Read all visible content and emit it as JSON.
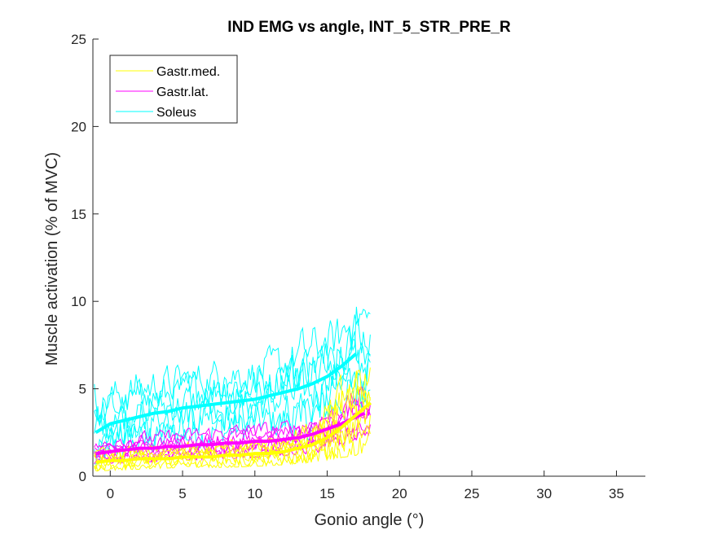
{
  "chart_data": {
    "type": "line",
    "title": "IND EMG vs angle, INT_5_STR_PRE_R",
    "xlabel": "Gonio angle (°)",
    "ylabel": "Muscle activation (% of MVC)",
    "xlim": [
      -1.2,
      37
    ],
    "ylim": [
      0,
      25
    ],
    "xticks": [
      0,
      5,
      10,
      15,
      20,
      25,
      30,
      35
    ],
    "yticks": [
      0,
      5,
      10,
      15,
      20,
      25
    ],
    "grid": false,
    "legend_position": "top-left",
    "series": [
      {
        "name": "Gastr.med.",
        "color": "#ffff00",
        "mean": {
          "x": [
            -1,
            0,
            1,
            2,
            3,
            4,
            5,
            6,
            7,
            8,
            9,
            10,
            11,
            12,
            13,
            14,
            15,
            16,
            17,
            18
          ],
          "y": [
            0.8,
            0.9,
            0.9,
            1.0,
            1.0,
            1.0,
            1.1,
            1.1,
            1.1,
            1.2,
            1.2,
            1.3,
            1.3,
            1.4,
            1.6,
            1.8,
            2.2,
            2.8,
            3.5,
            4.2
          ]
        },
        "trial_count": 6,
        "trial_band": [
          [
            -1,
            0.3,
            2.0
          ],
          [
            2,
            0.4,
            2.2
          ],
          [
            5,
            0.5,
            2.4
          ],
          [
            8,
            0.5,
            2.6
          ],
          [
            11,
            0.6,
            3.0
          ],
          [
            14,
            0.8,
            4.5
          ],
          [
            15.5,
            1.0,
            9.5
          ],
          [
            17,
            1.2,
            8.5
          ],
          [
            18,
            1.4,
            6.5
          ]
        ]
      },
      {
        "name": "Gastr.lat.",
        "color": "#ff00ff",
        "mean": {
          "x": [
            -1,
            0,
            1,
            2,
            3,
            4,
            5,
            6,
            7,
            8,
            9,
            10,
            11,
            12,
            13,
            14,
            15,
            16,
            17,
            17.6
          ],
          "y": [
            1.3,
            1.4,
            1.5,
            1.6,
            1.6,
            1.7,
            1.7,
            1.8,
            1.8,
            1.9,
            1.9,
            2.0,
            2.0,
            2.1,
            2.2,
            2.4,
            2.7,
            3.0,
            3.4,
            3.6
          ]
        },
        "trial_count": 6,
        "trial_band": [
          [
            -1,
            0.7,
            2.2
          ],
          [
            2,
            0.8,
            3.0
          ],
          [
            5,
            0.9,
            3.2
          ],
          [
            8,
            1.0,
            3.5
          ],
          [
            11,
            1.1,
            3.6
          ],
          [
            14,
            1.3,
            4.0
          ],
          [
            15.5,
            1.5,
            4.5
          ],
          [
            17,
            1.8,
            6.0
          ],
          [
            18,
            2.0,
            5.0
          ]
        ]
      },
      {
        "name": "Soleus",
        "color": "#00ffff",
        "mean": {
          "x": [
            -1,
            0,
            1,
            2,
            3,
            4,
            5,
            6,
            7,
            8,
            9,
            10,
            11,
            12,
            13,
            14,
            15,
            16,
            17
          ],
          "y": [
            2.5,
            3.0,
            3.2,
            3.4,
            3.6,
            3.7,
            3.9,
            4.0,
            4.1,
            4.2,
            4.3,
            4.4,
            4.6,
            4.8,
            5.0,
            5.3,
            5.7,
            6.3,
            7.0
          ]
        },
        "trial_count": 6,
        "trial_band": [
          [
            -1,
            0.7,
            6.5
          ],
          [
            2,
            1.2,
            7.5
          ],
          [
            5,
            1.5,
            7.5
          ],
          [
            8,
            1.8,
            8.0
          ],
          [
            11,
            2.0,
            8.0
          ],
          [
            13.5,
            0.5,
            8.5
          ],
          [
            15.5,
            3.0,
            10.0
          ],
          [
            17.2,
            3.5,
            12.5
          ],
          [
            18,
            4.0,
            10.5
          ]
        ]
      }
    ]
  }
}
